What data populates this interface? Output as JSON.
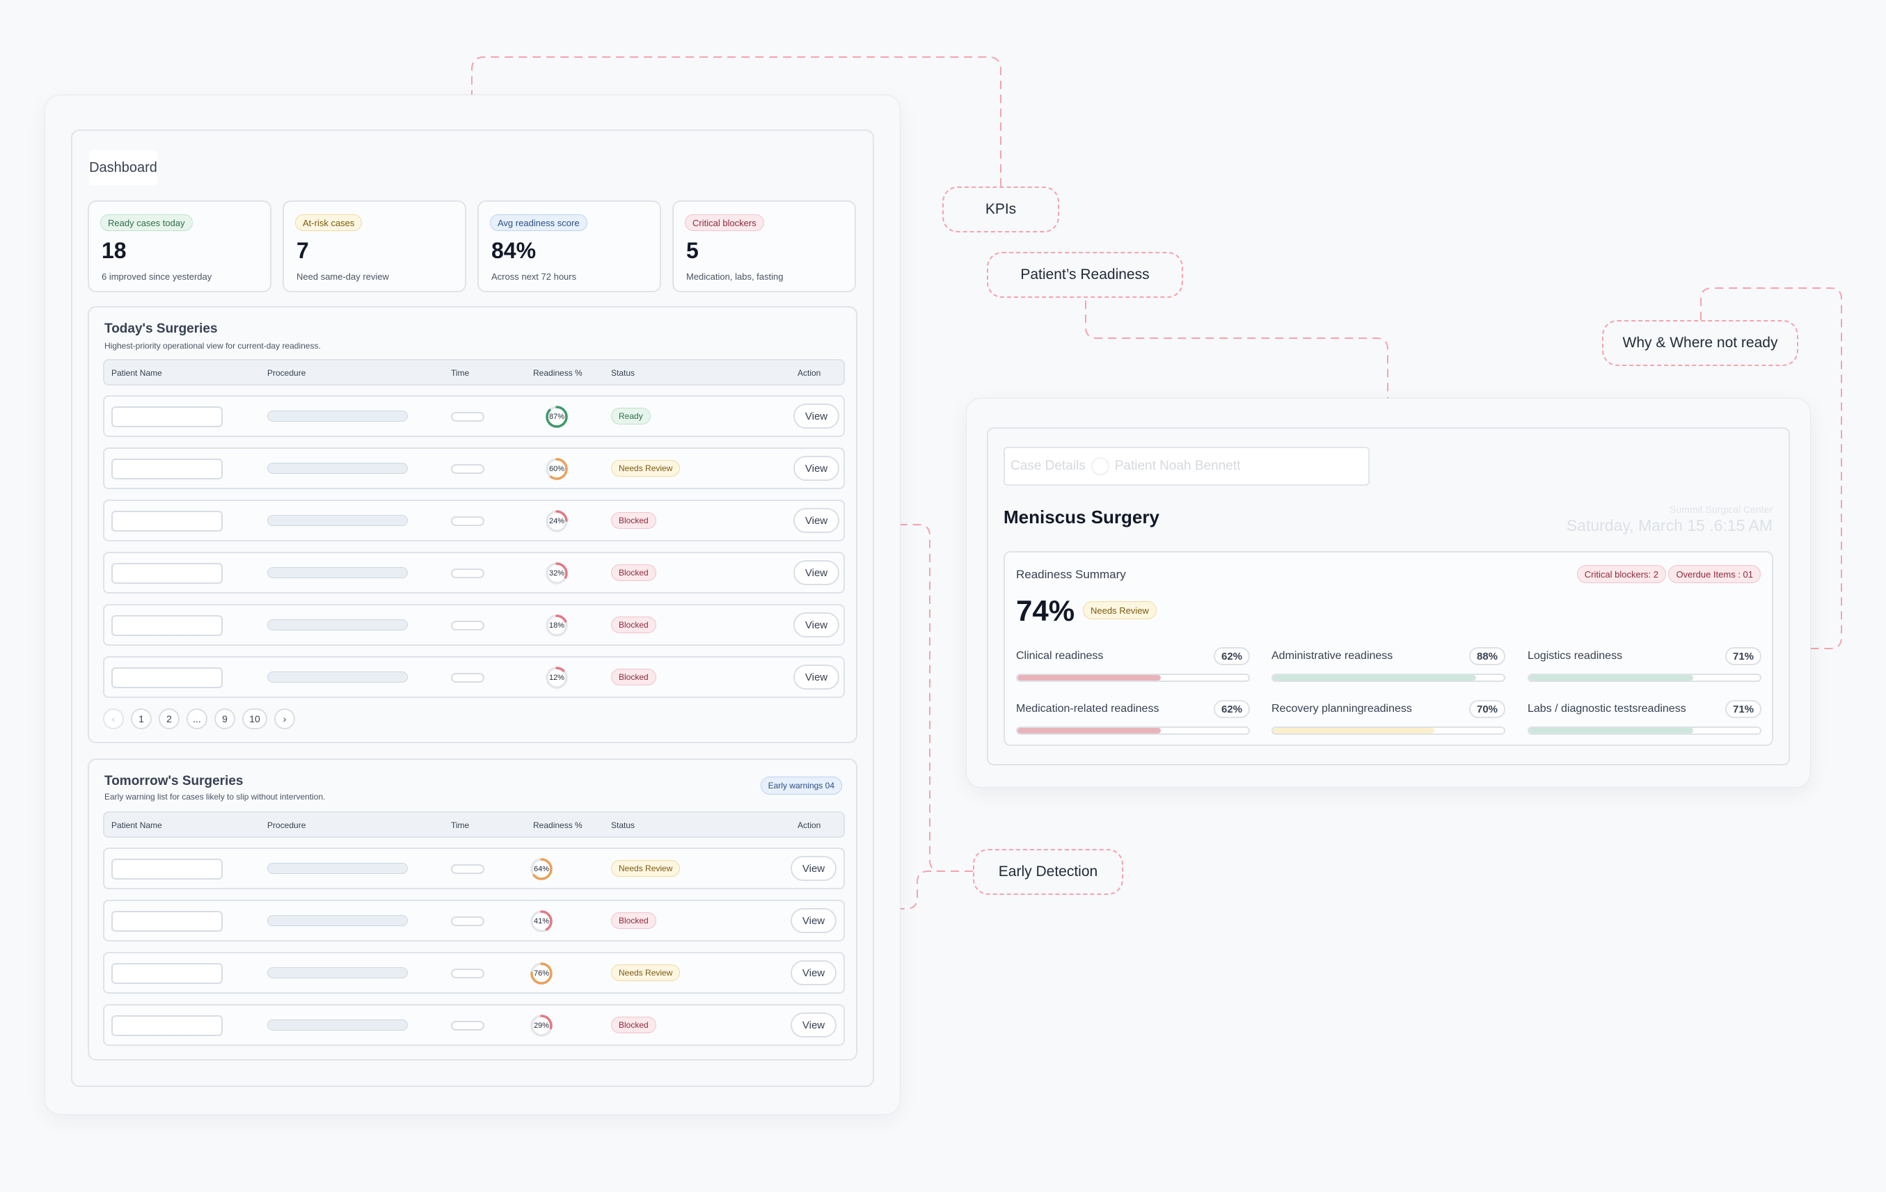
{
  "dashboard": {
    "title": "Dashboard",
    "kpis": [
      {
        "label": "Ready cases today",
        "value": "18",
        "sub": "6 improved since yesterday",
        "tone": "green"
      },
      {
        "label": "At-risk cases",
        "value": "7",
        "sub": "Need same-day review",
        "tone": "yellow"
      },
      {
        "label": "Avg readiness score",
        "value": "84%",
        "sub": "Across next 72 hours",
        "tone": "blue"
      },
      {
        "label": "Critical blockers",
        "value": "5",
        "sub": "Medication, labs, fasting",
        "tone": "red"
      }
    ],
    "columns": {
      "patient": "Patient Name",
      "procedure": "Procedure",
      "time": "Time",
      "readiness": "Readiness %",
      "status": "Status",
      "action": "Action"
    },
    "today": {
      "title": "Today's Surgeries",
      "subtitle": "Highest-priority operational view for current-day readiness.",
      "rows": [
        {
          "readiness": 87,
          "label": "87%",
          "status": "Ready",
          "tone": "green",
          "action": "View"
        },
        {
          "readiness": 60,
          "label": "60%",
          "status": "Needs Review",
          "tone": "yellow",
          "action": "View"
        },
        {
          "readiness": 24,
          "label": "24%",
          "status": "Blocked",
          "tone": "red",
          "action": "View"
        },
        {
          "readiness": 32,
          "label": "32%",
          "status": "Blocked",
          "tone": "red",
          "action": "View"
        },
        {
          "readiness": 18,
          "label": "18%",
          "status": "Blocked",
          "tone": "red",
          "action": "View"
        },
        {
          "readiness": 12,
          "label": "12%",
          "status": "Blocked",
          "tone": "red",
          "action": "View"
        }
      ],
      "pagination": {
        "prev": "‹",
        "pages": [
          "1",
          "2",
          "...",
          "9",
          "10"
        ],
        "next": "›"
      }
    },
    "tomorrow": {
      "title": "Tomorrow's Surgeries",
      "subtitle": "Early warning list for cases likely to slip without intervention.",
      "badge": "Early warnings 04",
      "rows": [
        {
          "readiness": 64,
          "label": "64%",
          "status": "Needs Review",
          "tone": "yellow",
          "action": "View"
        },
        {
          "readiness": 41,
          "label": "41%",
          "status": "Blocked",
          "tone": "red",
          "action": "View"
        },
        {
          "readiness": 76,
          "label": "76%",
          "status": "Needs Review",
          "tone": "yellow",
          "action": "View"
        },
        {
          "readiness": 29,
          "label": "29%",
          "status": "Blocked",
          "tone": "red",
          "action": "View"
        }
      ]
    }
  },
  "callouts": {
    "kpis": "KPIs",
    "patient_readiness": "Patient’s Readiness",
    "why_where": "Why & Where not ready",
    "early_detection": "Early Detection"
  },
  "case": {
    "breadcrumb_a": "Case Details",
    "breadcrumb_b": "Patient Noah Bennett",
    "title": "Meniscus Surgery",
    "location": "Summit Surgical Center",
    "datetime": "Saturday, March 15 .6:15 AM",
    "summary": {
      "title": "Readiness Summary",
      "score": "74%",
      "status": "Needs Review",
      "critical_badge": "Critical blockers: 2",
      "overdue_badge": "Overdue Items : 01",
      "bars": [
        {
          "label": "Clinical readiness",
          "pct": "62%",
          "value": 62,
          "color": "#e9b3bb"
        },
        {
          "label": "Administrative readiness",
          "pct": "88%",
          "value": 88,
          "color": "#cfe6dc"
        },
        {
          "label": "Logistics readiness",
          "pct": "71%",
          "value": 71,
          "color": "#cfe6dc"
        },
        {
          "label": "Medication-related readiness",
          "pct": "62%",
          "value": 62,
          "color": "#e9b3bb"
        },
        {
          "label": "Recovery planningreadiness",
          "pct": "70%",
          "value": 70,
          "color": "#fbf0cc"
        },
        {
          "label": "Labs / diagnostic testsreadiness",
          "pct": "71%",
          "value": 71,
          "color": "#cfe6dc"
        }
      ]
    }
  },
  "colors": {
    "green": "#3d9a6a",
    "yellow": "#e9a15a",
    "red": "#e07a86",
    "callout": "#f4a4ad"
  }
}
